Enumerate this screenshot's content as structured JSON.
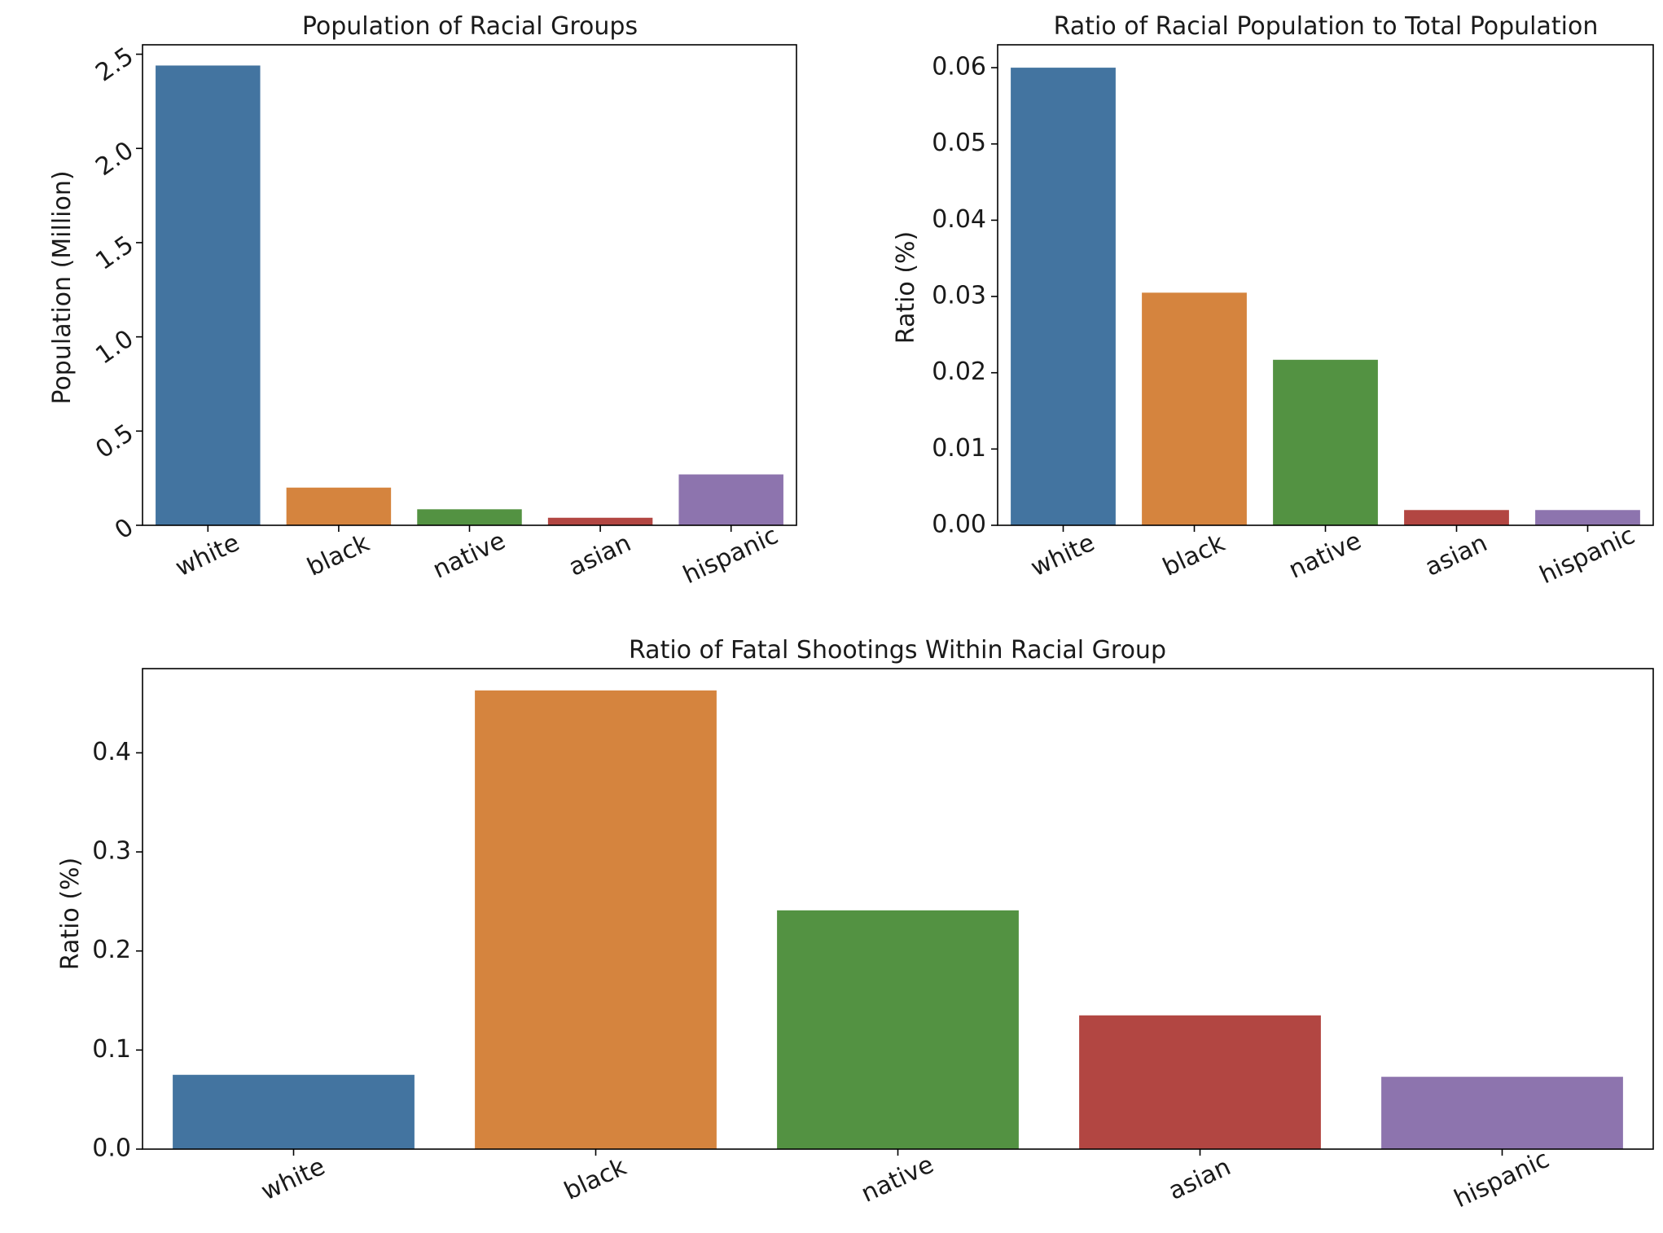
{
  "palette": [
    "#4374a0",
    "#d5843e",
    "#539242",
    "#b24642",
    "#8d74ae"
  ],
  "chart_data": [
    {
      "type": "bar",
      "title": "Population of Racial Groups",
      "xlabel": "",
      "ylabel": "Population (Million)",
      "categories": [
        "white",
        "black",
        "native",
        "asian",
        "hispanic"
      ],
      "values": [
        2.44,
        0.2,
        0.085,
        0.04,
        0.27
      ],
      "ylim": [
        0,
        2.55
      ],
      "yticks": [
        0,
        0.5,
        1.0,
        1.5,
        2.0,
        2.5
      ],
      "ytick_labels": [
        "0",
        "0.5",
        "1.0",
        "1.5",
        "2.0",
        "2.5"
      ],
      "ytick_rotation": "rotated",
      "grid": false,
      "legend": "none"
    },
    {
      "type": "bar",
      "title": "Ratio of Racial Population to Total Population",
      "xlabel": "",
      "ylabel": "Ratio (%)",
      "categories": [
        "white",
        "black",
        "native",
        "asian",
        "hispanic"
      ],
      "values": [
        0.06,
        0.0305,
        0.0217,
        0.002,
        0.002
      ],
      "ylim": [
        0,
        0.063
      ],
      "yticks": [
        0,
        0.01,
        0.02,
        0.03,
        0.04,
        0.05,
        0.06
      ],
      "ytick_labels": [
        "0.00",
        "0.01",
        "0.02",
        "0.03",
        "0.04",
        "0.05",
        "0.06"
      ],
      "grid": false,
      "legend": "none"
    },
    {
      "type": "bar",
      "title": "Ratio of Fatal Shootings Within Racial Group",
      "xlabel": "",
      "ylabel": "Ratio (%)",
      "categories": [
        "white",
        "black",
        "native",
        "asian",
        "hispanic"
      ],
      "values": [
        0.075,
        0.463,
        0.241,
        0.135,
        0.073
      ],
      "ylim": [
        0,
        0.485
      ],
      "yticks": [
        0,
        0.1,
        0.2,
        0.3,
        0.4
      ],
      "ytick_labels": [
        "0.0",
        "0.1",
        "0.2",
        "0.3",
        "0.4"
      ],
      "grid": false,
      "legend": "none"
    }
  ]
}
